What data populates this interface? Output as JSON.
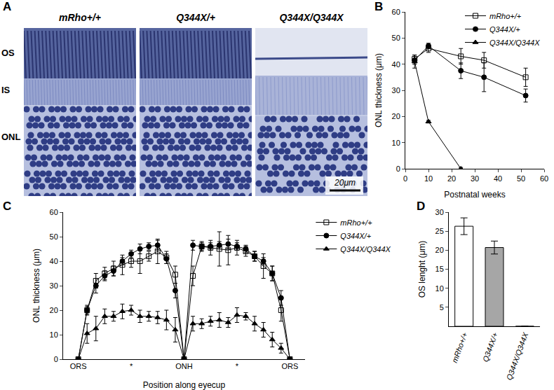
{
  "image_panel": {
    "panel_label": "A",
    "columns": [
      "mRho+/+",
      "Q344X/+",
      "Q344X/Q344X"
    ],
    "layers": [
      "OS",
      "IS",
      "ONL"
    ],
    "scale_bar": "20μm"
  },
  "chart_data": [
    {
      "panel_label": "B",
      "type": "line",
      "x": [
        4,
        10,
        24,
        34,
        52
      ],
      "xlabel": "Postnatal weeks",
      "ylabel": "ONL thickness (μm)",
      "xlim": [
        0,
        60
      ],
      "xticks": [
        0,
        10,
        20,
        30,
        40,
        50,
        60
      ],
      "ylim": [
        0,
        60
      ],
      "yticks": [
        0,
        10,
        20,
        30,
        40,
        50,
        60
      ],
      "grid": false,
      "legend": "upper right",
      "series": [
        {
          "name": "mRho+/+",
          "color": "#000000",
          "marker": "square-open",
          "values": [
            42,
            46,
            43,
            41.5,
            35
          ],
          "errors": [
            1.5,
            1.5,
            3,
            3,
            3.5
          ]
        },
        {
          "name": "Q344X/+",
          "color": "#000000",
          "marker": "circle",
          "values": [
            41.5,
            47,
            37.5,
            35,
            28
          ],
          "errors": [
            1.5,
            1,
            3,
            5.5,
            2.5
          ]
        },
        {
          "name": "Q344X/Q344X",
          "color": "#000000",
          "marker": "triangle-up",
          "values": [
            41,
            18,
            0,
            null,
            null
          ],
          "errors": [
            2.5,
            0.5,
            0.5,
            null,
            null
          ]
        }
      ]
    },
    {
      "panel_label": "C",
      "type": "line",
      "categories": [
        "ORS",
        null,
        null,
        null,
        null,
        null,
        "*",
        null,
        null,
        null,
        null,
        null,
        "ONH",
        null,
        null,
        null,
        null,
        null,
        "*",
        null,
        null,
        null,
        null,
        null,
        "ORS"
      ],
      "xlabel": "Position along eyecup",
      "ylabel": "ONL thickness (μm)",
      "ylim": [
        0,
        60
      ],
      "yticks": [
        0,
        10,
        20,
        30,
        40,
        50,
        60
      ],
      "grid": false,
      "legend": "right",
      "series": [
        {
          "name": "mRho+/+",
          "color": "#000000",
          "marker": "square-open",
          "values": [
            0,
            20,
            32,
            35,
            37,
            38.5,
            40,
            40,
            42,
            44,
            41.5,
            34.5,
            0,
            34,
            46,
            45.5,
            45,
            44.5,
            45.5,
            44,
            42,
            38,
            35,
            20,
            0
          ],
          "errors": [
            0,
            2,
            3,
            2.5,
            3,
            4,
            2.5,
            5,
            2,
            5,
            2.5,
            3.5,
            0,
            4,
            2,
            3,
            7,
            6,
            3,
            2,
            2,
            5,
            3,
            4.5,
            0
          ]
        },
        {
          "name": "Q344X/+",
          "color": "#000000",
          "marker": "circle",
          "values": [
            0,
            20,
            30,
            34,
            36,
            40,
            43,
            45,
            46,
            46.5,
            41,
            28,
            0,
            46.5,
            46,
            46,
            46.5,
            47,
            46,
            45,
            42,
            40,
            35,
            25,
            0
          ],
          "errors": [
            0,
            1.5,
            3,
            2,
            2,
            1.5,
            1.5,
            2,
            1.5,
            2,
            2,
            3,
            0,
            2,
            1.5,
            1.5,
            1.5,
            2,
            1.5,
            1.5,
            2,
            1.5,
            3,
            3,
            0
          ]
        },
        {
          "name": "Q344X/Q344X",
          "color": "#000000",
          "marker": "triangle-up",
          "values": [
            0,
            10.5,
            12.5,
            17.5,
            17.5,
            19.5,
            20,
            17.5,
            17.5,
            17,
            16,
            12,
            0,
            14.5,
            14.5,
            15.5,
            16,
            15,
            18,
            17.5,
            14.5,
            12,
            8,
            4.5,
            0
          ],
          "errors": [
            0,
            4,
            5,
            3,
            2,
            3,
            2,
            2.5,
            2,
            2.5,
            4,
            5,
            0,
            3,
            2,
            2,
            3,
            2,
            3,
            1.5,
            3,
            3,
            3,
            2,
            0
          ]
        }
      ]
    },
    {
      "panel_label": "D",
      "type": "bar",
      "categories": [
        "mRho+/+",
        "Q344X/+",
        "Q344X/Q344X"
      ],
      "values": [
        26.3,
        20.7,
        0
      ],
      "errors": [
        2.2,
        1.7,
        0
      ],
      "colors": [
        "#ffffff",
        "#a6a6a6",
        "#ffffff"
      ],
      "ylabel": "OS lenght (μm)",
      "ylim": [
        0,
        30
      ],
      "yticks": [
        5,
        10,
        15,
        20,
        25,
        30
      ],
      "grid": false
    }
  ]
}
